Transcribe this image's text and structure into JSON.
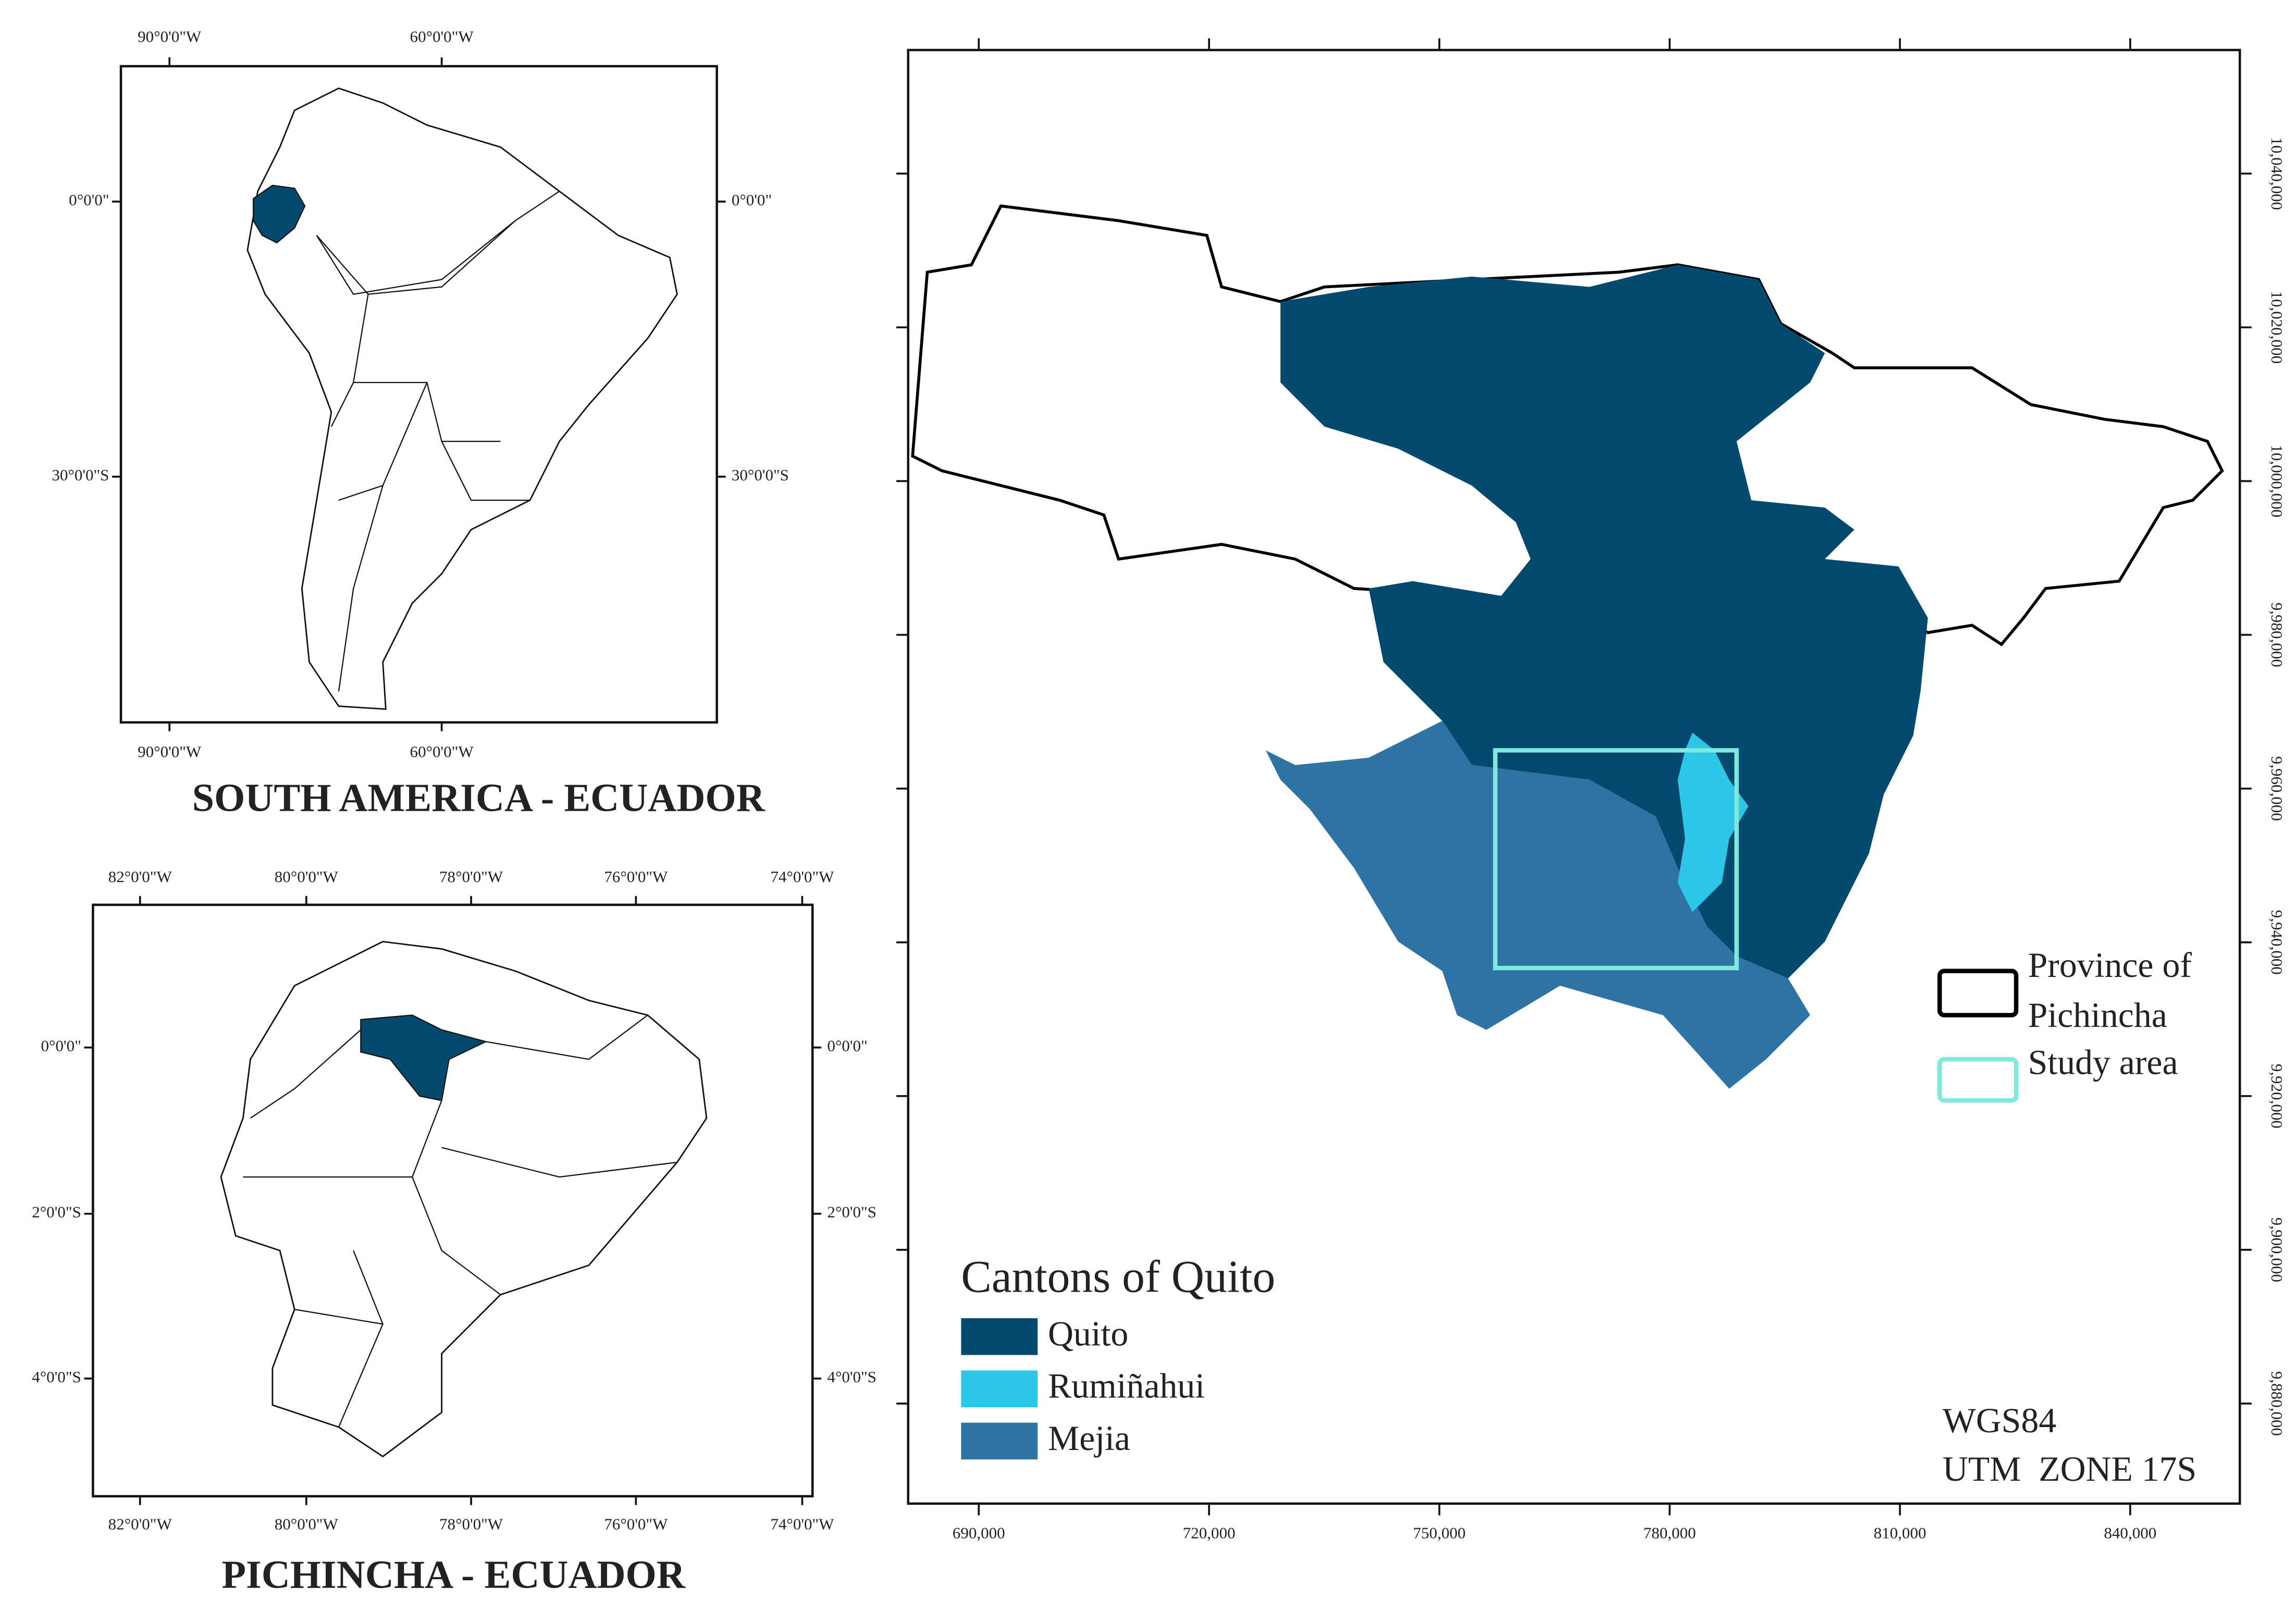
{
  "south_america": {
    "title": "SOUTH AMERICA - ECUADOR",
    "lon_labels": [
      "90°0'0\"W",
      "60°0'0\"W"
    ],
    "lat_labels": [
      "0°0'0\"",
      "30°0'0\"S"
    ]
  },
  "pichincha": {
    "title": "PICHINCHA - ECUADOR",
    "lon_labels": [
      "82°0'0\"W",
      "80°0'0\"W",
      "78°0'0\"W",
      "76°0'0\"W",
      "74°0'0\"W"
    ],
    "lat_labels": [
      "0°0'0\"",
      "2°0'0\"S",
      "4°0'0\"S"
    ]
  },
  "main_map": {
    "x_labels": [
      "690,000",
      "720,000",
      "750,000",
      "780,000",
      "810,000",
      "840,000"
    ],
    "y_labels": [
      "10,040,000",
      "10,020,000",
      "10,000,000",
      "9,980,000",
      "9,960,000",
      "9,940,000",
      "9,920,000",
      "9,900,000",
      "9,880,000"
    ],
    "cantons_legend": {
      "title": "Cantons of Quito",
      "items": [
        {
          "name": "Quito",
          "color": "#044a6e"
        },
        {
          "name": "Rumiñahui",
          "color": "#2ec6e6"
        },
        {
          "name": "Mejia",
          "color": "#2e73a6"
        }
      ]
    },
    "area_legend": [
      {
        "name": "Province of Pichincha",
        "color": "#000000"
      },
      {
        "name": "Study area",
        "color": "#7fe9e0"
      }
    ],
    "crs": [
      "WGS84",
      "UTM  ZONE 17S"
    ]
  }
}
